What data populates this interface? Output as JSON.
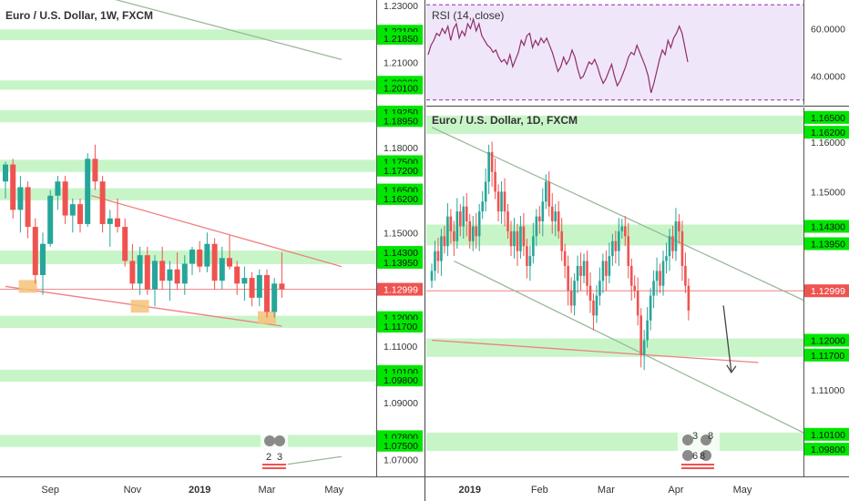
{
  "colors": {
    "up": "#26a69a",
    "down": "#ef5350",
    "zone": "#c8f5c8",
    "price_tag": "#00e600",
    "current_tag": "#ef5350",
    "rsi_line": "#8e2e6a",
    "rsi_band": "#f0e6fa",
    "rsi_border": "#9c27b0",
    "trend_red": "#ef7f7f",
    "trend_green": "#9cb89c",
    "highlight": "#f5c27a"
  },
  "chart_data": [
    {
      "type": "candlestick",
      "name": "weekly",
      "title": "Euro / U.S. Dollar, 1W, FXCM",
      "ylim": [
        1.064,
        1.232
      ],
      "x_ticks": [
        "Sep",
        "Nov",
        "2019",
        "Mar",
        "May"
      ],
      "x_tick_index": [
        6,
        17,
        26,
        35,
        44
      ],
      "y_ticks": [
        "1.23000",
        "1.21000",
        "1.18000",
        "1.15000",
        "1.11000",
        "1.09000",
        "1.07000"
      ],
      "price_levels": [
        "1.22100",
        "1.21850",
        "1.20300",
        "1.20100",
        "1.19250",
        "1.18950",
        "1.17500",
        "1.17200",
        "1.16500",
        "1.16200",
        "1.14300",
        "1.13950",
        "1.12000",
        "1.11700",
        "1.10100",
        "1.09800",
        "1.07800",
        "1.07500"
      ],
      "current_price": "1.12999",
      "zones": [
        [
          1.2185,
          1.221
        ],
        [
          1.201,
          1.203
        ],
        [
          1.1895,
          1.1925
        ],
        [
          1.172,
          1.175
        ],
        [
          1.162,
          1.165
        ],
        [
          1.1395,
          1.143
        ],
        [
          1.117,
          1.12
        ],
        [
          1.098,
          1.101
        ],
        [
          1.075,
          1.078
        ]
      ],
      "candles": [
        [
          1.168,
          1.175,
          1.162,
          1.174
        ],
        [
          1.174,
          1.176,
          1.155,
          1.158
        ],
        [
          1.158,
          1.17,
          1.15,
          1.166
        ],
        [
          1.166,
          1.168,
          1.148,
          1.152
        ],
        [
          1.152,
          1.155,
          1.132,
          1.135
        ],
        [
          1.135,
          1.15,
          1.128,
          1.146
        ],
        [
          1.146,
          1.165,
          1.145,
          1.163
        ],
        [
          1.163,
          1.17,
          1.158,
          1.168
        ],
        [
          1.168,
          1.17,
          1.153,
          1.156
        ],
        [
          1.156,
          1.162,
          1.15,
          1.16
        ],
        [
          1.16,
          1.162,
          1.15,
          1.153
        ],
        [
          1.153,
          1.178,
          1.152,
          1.176
        ],
        [
          1.176,
          1.181,
          1.165,
          1.168
        ],
        [
          1.168,
          1.17,
          1.15,
          1.153
        ],
        [
          1.153,
          1.158,
          1.145,
          1.155
        ],
        [
          1.155,
          1.162,
          1.15,
          1.152
        ],
        [
          1.152,
          1.155,
          1.138,
          1.14
        ],
        [
          1.14,
          1.146,
          1.13,
          1.132
        ],
        [
          1.132,
          1.145,
          1.128,
          1.142
        ],
        [
          1.142,
          1.145,
          1.128,
          1.13
        ],
        [
          1.13,
          1.142,
          1.124,
          1.14
        ],
        [
          1.14,
          1.145,
          1.13,
          1.133
        ],
        [
          1.133,
          1.14,
          1.126,
          1.137
        ],
        [
          1.137,
          1.143,
          1.13,
          1.132
        ],
        [
          1.132,
          1.142,
          1.128,
          1.139
        ],
        [
          1.139,
          1.145,
          1.135,
          1.144
        ],
        [
          1.144,
          1.147,
          1.136,
          1.138
        ],
        [
          1.138,
          1.15,
          1.136,
          1.146
        ],
        [
          1.146,
          1.148,
          1.13,
          1.133
        ],
        [
          1.133,
          1.145,
          1.13,
          1.141
        ],
        [
          1.141,
          1.149,
          1.137,
          1.138
        ],
        [
          1.138,
          1.14,
          1.128,
          1.132
        ],
        [
          1.132,
          1.138,
          1.126,
          1.134
        ],
        [
          1.134,
          1.136,
          1.124,
          1.127
        ],
        [
          1.127,
          1.137,
          1.124,
          1.135
        ],
        [
          1.135,
          1.137,
          1.12,
          1.122
        ],
        [
          1.122,
          1.134,
          1.12,
          1.132
        ],
        [
          1.132,
          1.143,
          1.127,
          1.13
        ]
      ],
      "trendlines": [
        {
          "color": "red",
          "from": [
            11.5,
            1.163
          ],
          "to": [
            45,
            1.138
          ]
        },
        {
          "color": "red",
          "from": [
            0,
            1.131
          ],
          "to": [
            37,
            1.117
          ]
        },
        {
          "color": "grey",
          "from": [
            13.5,
            1.233
          ],
          "to": [
            45,
            1.211
          ]
        },
        {
          "color": "grey",
          "from": [
            37,
            1.068
          ],
          "to": [
            45,
            1.071
          ]
        }
      ],
      "highlight_boxes": [
        [
          3,
          1.131
        ],
        [
          18,
          1.124
        ],
        [
          35,
          1.12
        ]
      ],
      "horizontal_line": 1.12999,
      "overlay_labels": [
        "2",
        "3"
      ]
    },
    {
      "type": "line",
      "name": "rsi",
      "title": "RSI (14, close)",
      "ylim": [
        28,
        72
      ],
      "band": [
        30,
        70
      ],
      "y_ticks": [
        "60.0000",
        "40.0000"
      ],
      "y_tick_values": [
        60,
        40
      ],
      "values": [
        49,
        53,
        55,
        58,
        57,
        60,
        58,
        61,
        55,
        60,
        62,
        56,
        59,
        57,
        62,
        60,
        64,
        59,
        62,
        57,
        55,
        53,
        52,
        50,
        51,
        48,
        46,
        47,
        45,
        49,
        44,
        47,
        50,
        55,
        53,
        57,
        58,
        52,
        55,
        53,
        56,
        54,
        56,
        53,
        50,
        46,
        42,
        44,
        48,
        45,
        47,
        51,
        48,
        43,
        39,
        40,
        43,
        46,
        45,
        47,
        44,
        40,
        37,
        39,
        42,
        45,
        40,
        36,
        38,
        41,
        44,
        48,
        50,
        49,
        53,
        50,
        47,
        44,
        40,
        33,
        37,
        42,
        47,
        51,
        49,
        55,
        52,
        56,
        58,
        61,
        58,
        52,
        46
      ]
    },
    {
      "type": "candlestick",
      "name": "daily",
      "title": "Euro / U.S. Dollar, 1D, FXCM",
      "ylim": [
        1.0925,
        1.167
      ],
      "x_ticks": [
        "2019",
        "Feb",
        "Mar",
        "Apr",
        "May"
      ],
      "x_tick_index": [
        12,
        34,
        55,
        77,
        98
      ],
      "y_ticks": [
        "1.16000",
        "1.15000",
        "1.11000"
      ],
      "price_levels": [
        "1.16500",
        "1.16200",
        "1.14300",
        "1.13950",
        "1.12000",
        "1.11700",
        "1.10100",
        "1.09800"
      ],
      "current_price": "1.12999",
      "zones": [
        [
          1.162,
          1.165
        ],
        [
          1.1395,
          1.143
        ],
        [
          1.117,
          1.12
        ],
        [
          1.098,
          1.101
        ]
      ],
      "closes": [
        1.134,
        1.138,
        1.136,
        1.141,
        1.139,
        1.145,
        1.142,
        1.14,
        1.146,
        1.143,
        1.147,
        1.144,
        1.14,
        1.143,
        1.141,
        1.146,
        1.148,
        1.152,
        1.158,
        1.154,
        1.15,
        1.146,
        1.15,
        1.146,
        1.142,
        1.139,
        1.142,
        1.138,
        1.143,
        1.139,
        1.135,
        1.137,
        1.141,
        1.145,
        1.144,
        1.148,
        1.152,
        1.147,
        1.144,
        1.146,
        1.142,
        1.138,
        1.135,
        1.13,
        1.127,
        1.132,
        1.135,
        1.133,
        1.136,
        1.131,
        1.128,
        1.125,
        1.129,
        1.132,
        1.136,
        1.133,
        1.137,
        1.14,
        1.138,
        1.142,
        1.143,
        1.141,
        1.135,
        1.131,
        1.13,
        1.125,
        1.117,
        1.12,
        1.124,
        1.129,
        1.132,
        1.134,
        1.131,
        1.136,
        1.137,
        1.141,
        1.138,
        1.144,
        1.142,
        1.135,
        1.131,
        1.126
      ],
      "trendlines": [
        {
          "color": "green",
          "from": [
            0,
            1.163
          ],
          "to": [
            131,
            1.124
          ]
        },
        {
          "color": "green",
          "from": [
            7,
            1.136
          ],
          "to": [
            131,
            1.097
          ]
        },
        {
          "color": "red",
          "from": [
            0,
            1.12
          ],
          "to": [
            103,
            1.1155
          ]
        }
      ],
      "horizontal_line": 1.12999,
      "arrow": {
        "from": [
          92,
          1.127
        ],
        "to": [
          94.5,
          1.1135
        ]
      },
      "overlay_labels": [
        "3",
        "8",
        "6",
        "8"
      ]
    }
  ]
}
